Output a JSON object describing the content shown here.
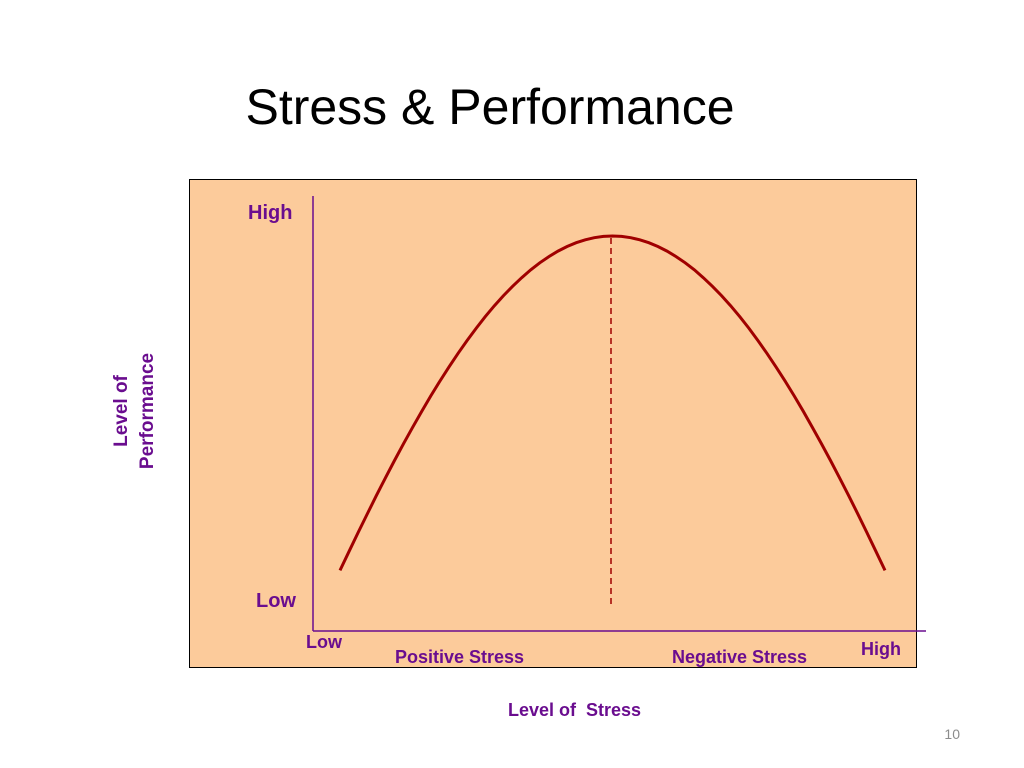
{
  "slide": {
    "title": "Stress & Performance",
    "page_number": "10"
  },
  "colors": {
    "background": "#ffffff",
    "chart_fill": "#fccb9b",
    "curve": "#a00000",
    "axis": "#6a0d8f",
    "label_text": "#6a0d8f"
  },
  "diagram": {
    "y_axis_label_line1": "Level of",
    "y_axis_label_line2": "Performance",
    "x_axis_label": "Level of  Stress",
    "y_high": "High",
    "y_low": "Low",
    "x_low": "Low",
    "x_high": "High",
    "region_left": "Positive Stress",
    "region_right": "Negative Stress"
  },
  "chart_data": {
    "type": "line",
    "title": "Stress & Performance",
    "xlabel": "Level of  Stress",
    "ylabel": "Level of Performance",
    "xlim": [
      0,
      1
    ],
    "ylim": [
      0,
      1
    ],
    "series": [
      {
        "x": [
          0.0,
          0.125,
          0.5,
          0.875,
          1.0
        ],
        "y": [
          0.0,
          0.26,
          1.0,
          0.26,
          0.0
        ]
      }
    ],
    "annotations": [
      "Positive Stress",
      "Negative Stress"
    ],
    "grid": false
  }
}
